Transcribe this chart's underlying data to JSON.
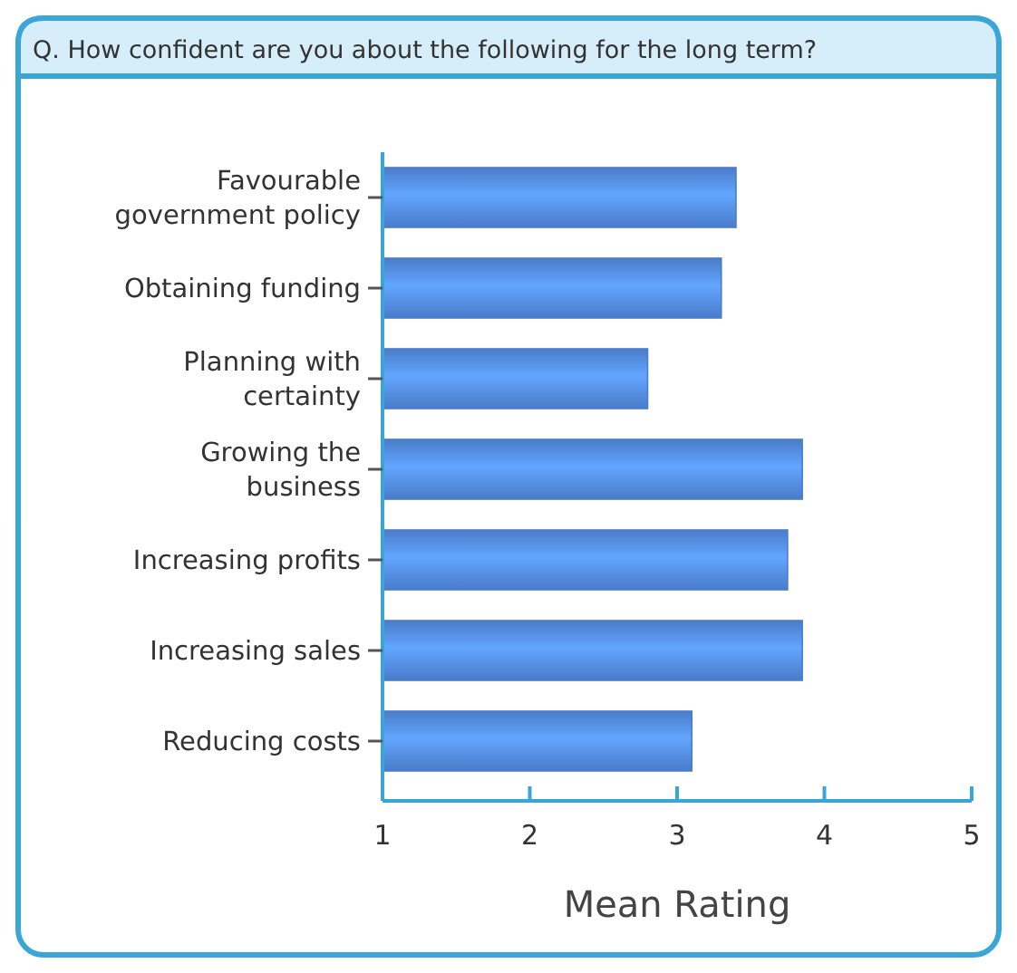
{
  "chart_data": {
    "type": "bar",
    "orientation": "horizontal",
    "title": "Q. How confident are you about the following for the long term?",
    "xlabel": "Mean Rating",
    "categories": [
      "Favourable government policy",
      "Obtaining funding",
      "Planning with certainty",
      "Growing the business",
      "Increasing profits",
      "Increasing sales",
      "Reducing costs"
    ],
    "values": [
      3.4,
      3.3,
      2.8,
      3.85,
      3.75,
      3.85,
      3.1
    ],
    "color": "#4a7cc9",
    "xlim": [
      1,
      5
    ],
    "xticks": [
      1,
      2,
      3,
      4,
      5
    ],
    "grid": false
  }
}
